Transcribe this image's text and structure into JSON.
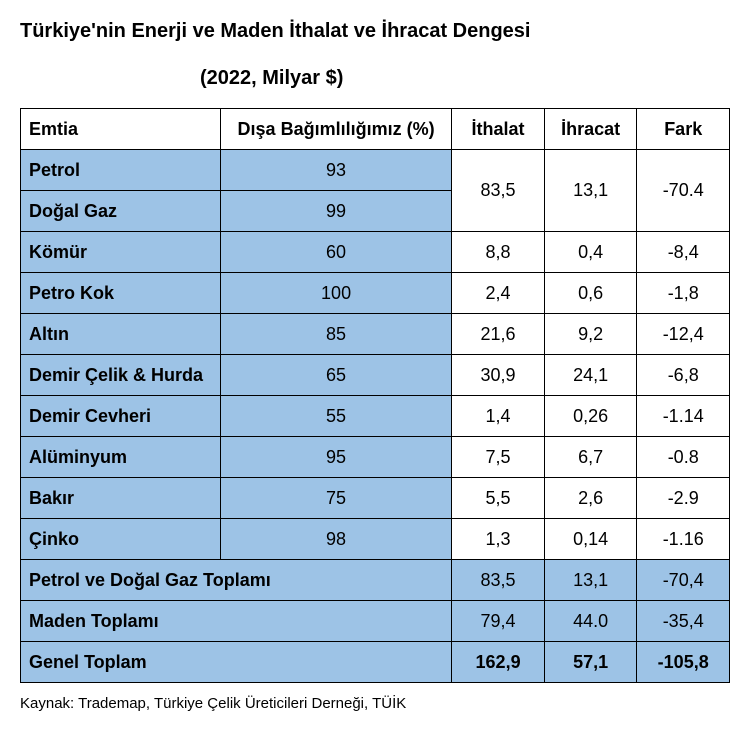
{
  "title": "Türkiye'nin Enerji ve Maden İthalat ve İhracat Dengesi",
  "subtitle": "(2022, Milyar $)",
  "columns": {
    "emtia": "Emtia",
    "dep": "Dışa Bağımlılığımız (%)",
    "imp": "İthalat",
    "exp": "İhracat",
    "diff": "Fark"
  },
  "rows": [
    {
      "emtia": "Petrol",
      "dep": "93",
      "imp": "83,5",
      "exp": "13,1",
      "diff": "-70.4",
      "mergeNext": true
    },
    {
      "emtia": "Doğal Gaz",
      "dep": "99"
    },
    {
      "emtia": "Kömür",
      "dep": "60",
      "imp": "8,8",
      "exp": "0,4",
      "diff": "-8,4"
    },
    {
      "emtia": "Petro Kok",
      "dep": "100",
      "imp": "2,4",
      "exp": "0,6",
      "diff": "-1,8"
    },
    {
      "emtia": "Altın",
      "dep": "85",
      "imp": "21,6",
      "exp": "9,2",
      "diff": "-12,4"
    },
    {
      "emtia": "Demir Çelik & Hurda",
      "dep": "65",
      "imp": "30,9",
      "exp": "24,1",
      "diff": "-6,8"
    },
    {
      "emtia": "Demir Cevheri",
      "dep": "55",
      "imp": "1,4",
      "exp": "0,26",
      "diff": "-1.14"
    },
    {
      "emtia": "Alüminyum",
      "dep": "95",
      "imp": "7,5",
      "exp": "6,7",
      "diff": "-0.8"
    },
    {
      "emtia": "Bakır",
      "dep": "75",
      "imp": "5,5",
      "exp": "2,6",
      "diff": "-2.9"
    },
    {
      "emtia": "Çinko",
      "dep": "98",
      "imp": "1,3",
      "exp": "0,14",
      "diff": "-1.16"
    }
  ],
  "summaries": [
    {
      "label": "Petrol ve Doğal Gaz Toplamı",
      "imp": "83,5",
      "exp": "13,1",
      "diff": "-70,4"
    },
    {
      "label": "Maden Toplamı",
      "imp": "79,4",
      "exp": "44.0",
      "diff": "-35,4"
    }
  ],
  "grand": {
    "label": "Genel Toplam",
    "imp": "162,9",
    "exp": "57,1",
    "diff": "-105,8"
  },
  "source": "Kaynak: Trademap, Türkiye Çelik Üreticileri Derneği, TÜİK",
  "colors": {
    "blue": "#9dc3e6",
    "white": "#ffffff",
    "border": "#000000"
  }
}
